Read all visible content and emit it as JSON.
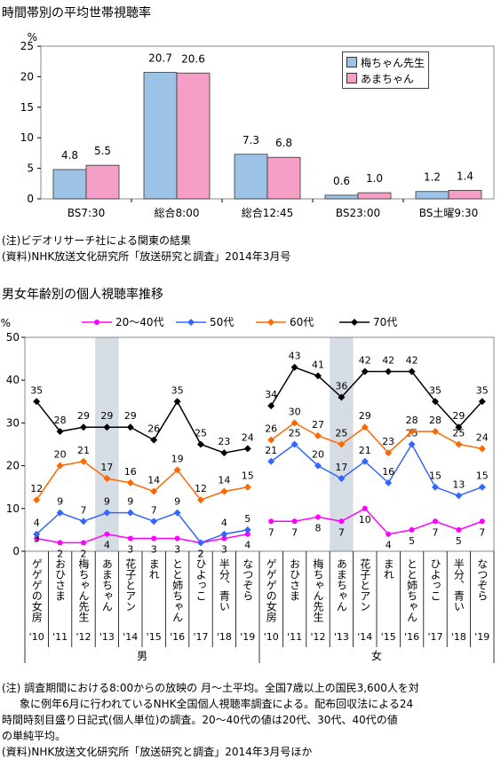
{
  "chart1": {
    "title": "時間帯別の平均世帯視聴率",
    "unit": "%",
    "legend": [
      "梅ちゃん先生",
      "あまちゃん"
    ],
    "colors": {
      "umechan": "#9cc3e5",
      "amachan": "#f59fc6"
    },
    "notes": [
      "(注)ビデオリサーチ社による関東の結果",
      "(資料)NHK放送文化研究所「放送研究と調査」2014年3月号"
    ]
  },
  "chart2": {
    "title": "男女年齢別の個人視聴率推移",
    "unit": "%",
    "male_label": "男",
    "female_label": "女",
    "notes": [
      "(注) 調査期間における8:00からの放映の 月～土平均。全国7歳以上の国民3,600人を対",
      "象に例年6月に行われているNHK全国個人視聴率調査による。配布回収法による24",
      "時間時刻目盛り日記式(個人単位)の調査。20～40代の値は20代、30代、40代の値",
      "の単純平均。",
      "(資料)NHK放送文化研究所「放送研究と調査」2014年3月号ほか"
    ]
  },
  "chart_data": [
    {
      "type": "bar",
      "categories": [
        "BS7:30",
        "総合8:00",
        "総合12:45",
        "BS23:00",
        "BS土曜9:30"
      ],
      "series": [
        {
          "name": "梅ちゃん先生",
          "values": [
            4.8,
            20.7,
            7.3,
            0.6,
            1.2
          ],
          "labels": [
            "4.8",
            "20.7",
            "7.3",
            "0.6",
            "1.2"
          ],
          "color": "#9cc3e5"
        },
        {
          "name": "あまちゃん",
          "values": [
            5.5,
            20.6,
            6.8,
            1.0,
            1.4
          ],
          "labels": [
            "5.5",
            "20.6",
            "6.8",
            "1.0",
            "1.4"
          ],
          "color": "#f59fc6"
        }
      ],
      "ylim": [
        0,
        25
      ],
      "yticks": [
        0,
        5,
        10,
        15,
        20,
        25
      ],
      "grid": false,
      "legend_position": "top-right"
    },
    {
      "type": "line",
      "categories": [
        "ゲゲゲの女房",
        "おひさま",
        "梅ちゃん先生",
        "あまちゃん",
        "花子とアン",
        "まれ",
        "とと姉ちゃん",
        "ひよっこ",
        "半分、青い",
        "なつぞら",
        "ゲゲゲの女房",
        "おひさま",
        "梅ちゃん先生",
        "あまちゃん",
        "花子とアン",
        "まれ",
        "とと姉ちゃん",
        "ひよっこ",
        "半分、青い",
        "なつぞら"
      ],
      "years": [
        "'10",
        "'11",
        "'12",
        "'13",
        "'14",
        "'15",
        "'16",
        "'17",
        "'18",
        "'19",
        "'10",
        "'11",
        "'12",
        "'13",
        "'14",
        "'15",
        "'16",
        "'17",
        "'18",
        "'19"
      ],
      "groups": [
        "男",
        "女"
      ],
      "highlighted_category": "あまちゃん",
      "series": [
        {
          "name": "20～40代",
          "color": "#ff00ff",
          "marker": "circle",
          "male": [
            3,
            2,
            2,
            4,
            3,
            3,
            3,
            2,
            3,
            4
          ],
          "female": [
            7,
            7,
            8,
            7,
            10,
            4,
            5,
            7,
            5,
            7
          ]
        },
        {
          "name": "50代",
          "color": "#3366ff",
          "marker": "diamond",
          "male": [
            4,
            9,
            7,
            9,
            9,
            7,
            9,
            2,
            4,
            5
          ],
          "female": [
            21,
            25,
            20,
            17,
            21,
            16,
            25,
            15,
            13,
            15
          ]
        },
        {
          "name": "60代",
          "color": "#ff6600",
          "marker": "diamond",
          "male": [
            12,
            20,
            21,
            17,
            16,
            14,
            19,
            12,
            14,
            15
          ],
          "female": [
            26,
            30,
            27,
            25,
            29,
            23,
            28,
            28,
            25,
            24
          ]
        },
        {
          "name": "70代",
          "color": "#000000",
          "marker": "diamond",
          "male": [
            35,
            28,
            29,
            29,
            29,
            26,
            35,
            25,
            23,
            24
          ],
          "female": [
            34,
            43,
            41,
            36,
            42,
            42,
            42,
            35,
            29,
            35
          ]
        }
      ],
      "ylim": [
        0,
        50
      ],
      "yticks": [
        0,
        10,
        20,
        30,
        40,
        50
      ],
      "grid": false,
      "legend_position": "top"
    }
  ]
}
